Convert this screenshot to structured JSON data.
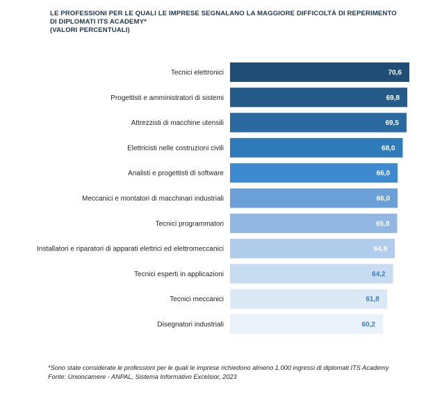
{
  "chart_data": {
    "type": "bar",
    "orientation": "horizontal",
    "title": "LE PROFESSIONI PER LE QUALI LE IMPRESE SEGNALANO LA MAGGIORE DIFFICOLTÀ DI REPERIMENTO",
    "title_line2": "DI DIPLOMATI ITS ACADEMY*",
    "subtitle": "(VALORI PERCENTUALI)",
    "categories": [
      "Tecnici elettronici",
      "Progettisti e amministratori di sistemi",
      "Attrezzisti di macchine utensili",
      "Elettricisti nelle costruzioni civili",
      "Analisti e progettisti di software",
      "Meccanici e montatori di macchinari industriali",
      "Tecnici programmatori",
      "Installatori e riparatori di apparati elettrici ed elettromeccanici",
      "Tecnici esperti in applicazioni",
      "Tecnici meccanici",
      "Disegnatori industriali"
    ],
    "values": [
      70.6,
      69.8,
      69.5,
      68.0,
      66.0,
      66.0,
      65.8,
      64.9,
      64.2,
      61.8,
      60.2
    ],
    "value_labels": [
      "70,6",
      "69,8",
      "69,5",
      "68,0",
      "66,0",
      "66,0",
      "65,8",
      "64,9",
      "64,2",
      "61,8",
      "60,2"
    ],
    "bar_colors": [
      "#1f4d74",
      "#245b89",
      "#2a6aa0",
      "#2f7ab8",
      "#3d8ad0",
      "#6a9fd7",
      "#91b7e2",
      "#b1cdec",
      "#c8dcf1",
      "#dbe8f5",
      "#e9f1fa"
    ],
    "label_colors": [
      "#ffffff",
      "#ffffff",
      "#ffffff",
      "#ffffff",
      "#ffffff",
      "#ffffff",
      "#ffffff",
      "#ffffff",
      "#3a7fc0",
      "#3a7fc0",
      "#3a7fc0"
    ],
    "xlim": [
      0,
      70.6
    ],
    "xlabel": "",
    "ylabel": "",
    "grid": false,
    "legend": "none"
  },
  "footnote": {
    "line1": "*Sono state considerate le professioni per le quali le imprese richiedono almeno 1.000 ingressi di diplomati ITS Academy",
    "line2": "Fonte: Unioncamere - ANPAL, Sistema Informativo Excelsior, 2023"
  }
}
